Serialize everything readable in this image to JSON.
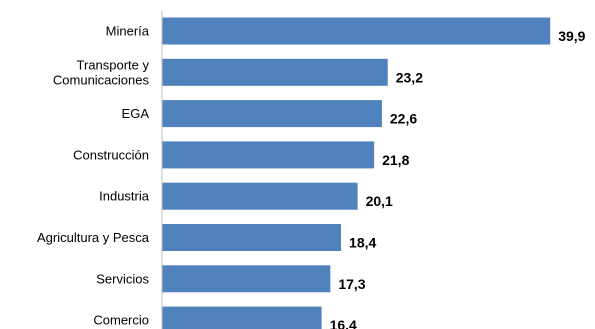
{
  "chart_data": {
    "type": "bar",
    "orientation": "horizontal",
    "categories": [
      [
        "Minería"
      ],
      [
        "Transporte y",
        "Comunicaciones"
      ],
      [
        "EGA"
      ],
      [
        "Construcción"
      ],
      [
        "Industria"
      ],
      [
        "Agricultura y Pesca"
      ],
      [
        "Servicios"
      ],
      [
        "Comercio"
      ]
    ],
    "values": [
      39.9,
      23.2,
      22.6,
      21.8,
      20.1,
      18.4,
      17.3,
      16.4
    ],
    "value_labels": [
      "39,9",
      "23,2",
      "22,6",
      "21,8",
      "20,1",
      "18,4",
      "17,3",
      "16,4"
    ],
    "title": "",
    "xlabel": "",
    "ylabel": "",
    "xlim": [
      0,
      41
    ],
    "grid": false,
    "legend": "none",
    "bar_color": "#4F81BD",
    "axis_color": "#BFBFBF"
  }
}
